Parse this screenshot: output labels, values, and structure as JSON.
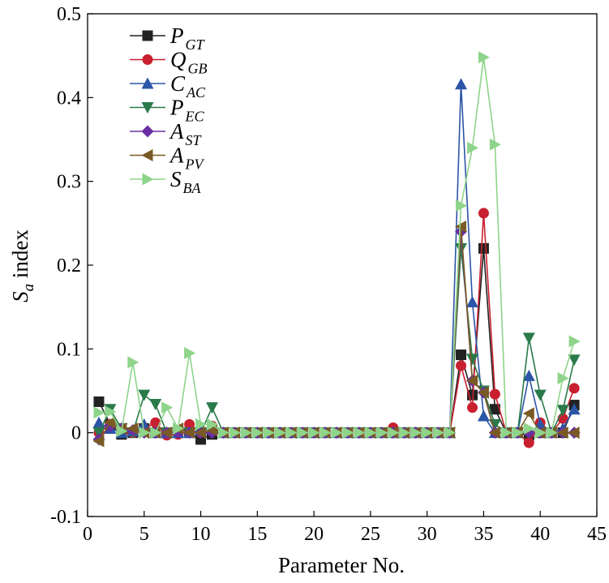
{
  "chart_data": {
    "type": "line",
    "xlabel": "Parameter No.",
    "ylabel_main": "S",
    "ylabel_sub": "a",
    "ylabel_rest": " index",
    "xlim": [
      0,
      45
    ],
    "ylim": [
      -0.1,
      0.5
    ],
    "xticks": [
      0,
      5,
      10,
      15,
      20,
      25,
      30,
      35,
      40,
      45
    ],
    "xtick_labels": [
      "0",
      "5",
      "10",
      "15",
      "20",
      "25",
      "30",
      "35",
      "40",
      "45"
    ],
    "yticks": [
      -0.1,
      0,
      0.1,
      0.2,
      0.3,
      0.4,
      0.5
    ],
    "ytick_labels": [
      "-0.1",
      "0",
      "0.1",
      "0.2",
      "0.3",
      "0.4",
      "0.5"
    ],
    "grid": false,
    "legend_position": "top-left",
    "x": [
      1,
      2,
      3,
      4,
      5,
      6,
      7,
      8,
      9,
      10,
      11,
      12,
      13,
      14,
      15,
      16,
      17,
      18,
      19,
      20,
      21,
      22,
      23,
      24,
      25,
      26,
      27,
      28,
      29,
      30,
      31,
      32,
      33,
      34,
      35,
      36,
      37,
      38,
      39,
      40,
      41,
      42,
      43
    ],
    "series": [
      {
        "name": "P",
        "sub": "GT",
        "color": "#222222",
        "marker": "square",
        "values": [
          0.037,
          0.01,
          -0.002,
          0.0,
          0.005,
          0.0,
          0.0,
          0.0,
          0.0,
          -0.008,
          -0.002,
          0,
          0,
          0,
          0,
          0,
          0,
          0,
          0,
          0,
          0,
          0,
          0,
          0,
          0,
          0,
          0,
          0,
          0,
          0,
          0,
          0,
          0.093,
          0.045,
          0.22,
          0.028,
          0.0,
          0.0,
          -0.003,
          0.0,
          0.0,
          0.0,
          0.033
        ]
      },
      {
        "name": "Q",
        "sub": "GB",
        "color": "#c8202f",
        "marker": "circle",
        "values": [
          0.0,
          0.01,
          0.0,
          0.0,
          0.005,
          0.012,
          -0.003,
          -0.002,
          0.01,
          0.0,
          0.008,
          0,
          0,
          0,
          0,
          0,
          0,
          0,
          0,
          0,
          0,
          0,
          0,
          0,
          0,
          0,
          0.006,
          0,
          0,
          0,
          0,
          0,
          0.08,
          0.03,
          0.262,
          0.046,
          0.0,
          0.0,
          -0.012,
          0.012,
          0.0,
          0.017,
          0.053
        ]
      },
      {
        "name": "C",
        "sub": "AC",
        "color": "#2b55a6",
        "marker": "triangle-up",
        "values": [
          0.012,
          0.005,
          0.0,
          0.002,
          0.01,
          0.0,
          0.0,
          0.0,
          0.0,
          0.003,
          0.005,
          0,
          0,
          0,
          0,
          0,
          0,
          0,
          0,
          0,
          0,
          0,
          0,
          0,
          0,
          0,
          0,
          0,
          0,
          0,
          0,
          0,
          0.416,
          0.156,
          0.02,
          0.0,
          0.0,
          0.0,
          0.068,
          0.01,
          0.0,
          0.005,
          0.028
        ]
      },
      {
        "name": "P",
        "sub": "EC",
        "color": "#2a7a4a",
        "marker": "triangle-down",
        "values": [
          0.0,
          0.028,
          0.005,
          0.0,
          0.045,
          0.034,
          0.0,
          0.0,
          0.0,
          0.0,
          0.03,
          0,
          0,
          0,
          0,
          0,
          0,
          0,
          0,
          0,
          0,
          0,
          0,
          0,
          0,
          0,
          0,
          0,
          0,
          0,
          0,
          0,
          0.22,
          0.088,
          0.05,
          0.01,
          0.0,
          0.0,
          0.113,
          0.045,
          0.0,
          0.027,
          0.087
        ]
      },
      {
        "name": "A",
        "sub": "ST",
        "color": "#6a2fa3",
        "marker": "diamond",
        "values": [
          -0.008,
          0.008,
          0.005,
          0.003,
          0.0,
          0.0,
          0.0,
          0.0,
          0.0,
          0.0,
          0.0,
          0,
          0,
          0,
          0,
          0,
          0,
          0,
          0,
          0,
          0,
          0,
          0,
          0,
          0,
          0,
          0,
          0,
          0,
          0,
          0,
          0,
          0.24,
          0.062,
          0.048,
          0.0,
          0.0,
          0.0,
          0.0,
          0.0,
          0.0,
          0.0,
          0.0
        ]
      },
      {
        "name": "A",
        "sub": "PV",
        "color": "#7a5a24",
        "marker": "triangle-left",
        "values": [
          -0.01,
          0.012,
          0.005,
          0.005,
          0.0,
          0.0,
          0.0,
          0.005,
          0.0,
          0.0,
          0.003,
          0,
          0,
          0,
          0,
          0,
          0,
          0,
          0,
          0,
          0,
          0,
          0,
          0,
          0,
          0,
          0,
          0,
          0,
          0,
          0,
          0,
          0.246,
          0.062,
          0.048,
          0.0,
          0.0,
          0.0,
          0.023,
          0.0,
          0.0,
          0.0,
          0.0
        ]
      },
      {
        "name": "S",
        "sub": "BA",
        "color": "#8ed48a",
        "marker": "triangle-right",
        "values": [
          0.024,
          0.025,
          0.002,
          0.084,
          0.0,
          0.0,
          0.03,
          0.005,
          0.095,
          0.01,
          0.01,
          0,
          0,
          0,
          0,
          0,
          0,
          0,
          0,
          0,
          0,
          0,
          0,
          0,
          0,
          0,
          0,
          0,
          0,
          0,
          0,
          0,
          0.271,
          0.34,
          0.448,
          0.344,
          0.0,
          0.0,
          0.005,
          0.0,
          0.0,
          0.065,
          0.109
        ]
      }
    ]
  }
}
